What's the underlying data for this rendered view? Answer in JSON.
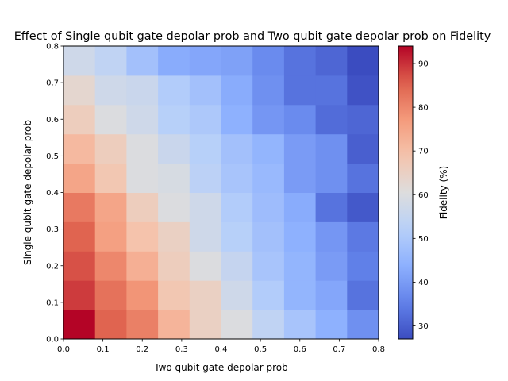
{
  "chart_data": {
    "type": "heatmap",
    "title": "Effect of Single qubit gate depolar prob and Two qubit gate depolar prob on Fidelity",
    "xlabel": "Two qubit gate depolar prob",
    "ylabel": "Single qubit gate depolar prob",
    "xlim": [
      0,
      0.8
    ],
    "ylim": [
      0,
      0.8
    ],
    "x_ticks": [
      "0.0",
      "0.1",
      "0.2",
      "0.3",
      "0.4",
      "0.5",
      "0.6",
      "0.7",
      "0.8"
    ],
    "y_ticks": [
      "0.0",
      "0.1",
      "0.2",
      "0.3",
      "0.4",
      "0.5",
      "0.6",
      "0.7",
      "0.8"
    ],
    "grid": false,
    "colorbar": {
      "label": "Fidelity (%)",
      "range": [
        27,
        94
      ],
      "ticks": [
        "30",
        "40",
        "50",
        "60",
        "70",
        "80",
        "90"
      ],
      "colormap": "coolwarm"
    },
    "x_centers": [
      0.04,
      0.12,
      0.2,
      0.28,
      0.36,
      0.44,
      0.52,
      0.6,
      0.68,
      0.76
    ],
    "y_centers": [
      0.04,
      0.12,
      0.2,
      0.28,
      0.36,
      0.44,
      0.52,
      0.6,
      0.68,
      0.76
    ],
    "values": [
      [
        94,
        85,
        81,
        72,
        65,
        60,
        54,
        49,
        44,
        38
      ],
      [
        89,
        83,
        78,
        68,
        65,
        57,
        51,
        45,
        42,
        33
      ],
      [
        87,
        80,
        73,
        66,
        60,
        55,
        49,
        45,
        40,
        35
      ],
      [
        85,
        76,
        69,
        65,
        57,
        52,
        48,
        44,
        39,
        34
      ],
      [
        82,
        75,
        66,
        60,
        57,
        51,
        47,
        43,
        33,
        29
      ],
      [
        75,
        68,
        60,
        59,
        53,
        49,
        46,
        40,
        38,
        33
      ],
      [
        71,
        66,
        60,
        56,
        52,
        48,
        45,
        40,
        38,
        30
      ],
      [
        66,
        60,
        57,
        52,
        50,
        44,
        39,
        37,
        32,
        31
      ],
      [
        63,
        57,
        56,
        51,
        48,
        43,
        38,
        33,
        33,
        28
      ],
      [
        57,
        54,
        48,
        43,
        42,
        41,
        37,
        33,
        31,
        27
      ]
    ]
  }
}
